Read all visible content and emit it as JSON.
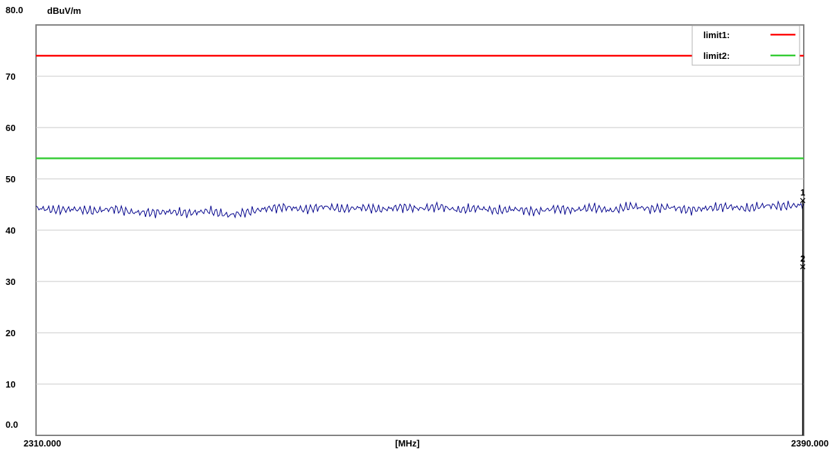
{
  "chart_data": {
    "type": "line",
    "ylabel": "dBuV/m",
    "xlabel": "[MHz]",
    "xlim": [
      2310.0,
      2390.0
    ],
    "ylim": [
      0,
      80
    ],
    "x_tick_labels": [
      "2310.000",
      "2390.000"
    ],
    "y_tick_labels": [
      "80.0",
      "70",
      "60",
      "50",
      "40",
      "30",
      "20",
      "10",
      "0.0"
    ],
    "y_ticks": [
      80,
      70,
      60,
      50,
      40,
      30,
      20,
      10,
      0
    ],
    "grid": true,
    "legend_position": "top-right",
    "limits": [
      {
        "name": "limit1:",
        "value": 74.0,
        "color": "#ff0000"
      },
      {
        "name": "limit2:",
        "value": 54.0,
        "color": "#33cc33"
      }
    ],
    "series": [
      {
        "color": "#00008b",
        "x": [
          2310,
          2312,
          2314,
          2316,
          2318,
          2320,
          2322,
          2324,
          2326,
          2328,
          2330,
          2332,
          2334,
          2336,
          2338,
          2340,
          2342,
          2344,
          2346,
          2348,
          2350,
          2352,
          2354,
          2356,
          2358,
          2360,
          2362,
          2364,
          2366,
          2368,
          2370,
          2372,
          2374,
          2376,
          2378,
          2380,
          2382,
          2384,
          2386,
          2388,
          2390
        ],
        "values": [
          44.3,
          43.9,
          44.1,
          43.7,
          44.2,
          43.5,
          43.4,
          43.6,
          43.3,
          43.8,
          42.9,
          43.5,
          44.2,
          44.5,
          44.0,
          44.6,
          44.1,
          44.4,
          44.0,
          44.5,
          44.2,
          44.6,
          43.9,
          44.3,
          43.8,
          44.1,
          43.6,
          44.2,
          43.9,
          44.4,
          43.8,
          44.7,
          44.1,
          44.5,
          43.9,
          44.3,
          44.6,
          44.2,
          44.8,
          44.7,
          44.9
        ]
      }
    ],
    "markers": [
      {
        "label": "1",
        "x": 2389.9,
        "y": 45.8
      },
      {
        "label": "2",
        "x": 2389.9,
        "y": 32.9
      }
    ]
  }
}
